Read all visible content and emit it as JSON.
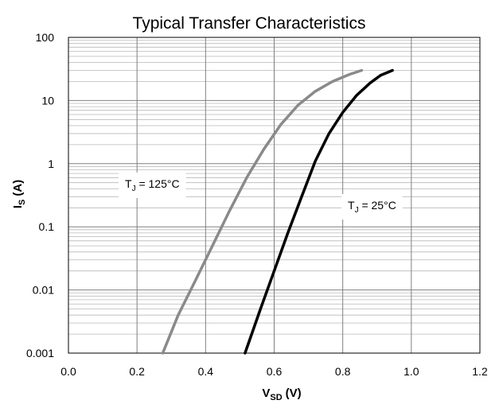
{
  "chart_data": {
    "type": "line",
    "title": "Typical Transfer Characteristics",
    "xlabel": {
      "main": "V",
      "sub": "SD",
      "unit": "(V)"
    },
    "ylabel": {
      "main": "I",
      "sub": "S",
      "unit": "(A)"
    },
    "xlim": [
      0,
      1.2
    ],
    "ylim": [
      0.001,
      100
    ],
    "yscale": "log",
    "grid": true,
    "x_ticks": [
      "0.0",
      "0.2",
      "0.4",
      "0.6",
      "0.8",
      "1.0",
      "1.2"
    ],
    "y_ticks": [
      "0.001",
      "0.01",
      "0.1",
      "1",
      "10",
      "100"
    ],
    "series": [
      {
        "name": "T_J = 125°C",
        "color": "#8a8a8a",
        "x": [
          0.275,
          0.32,
          0.37,
          0.42,
          0.47,
          0.52,
          0.57,
          0.62,
          0.67,
          0.72,
          0.77,
          0.82,
          0.855
        ],
        "y": [
          0.001,
          0.004,
          0.014,
          0.05,
          0.18,
          0.6,
          1.7,
          4.2,
          8.5,
          14,
          20,
          26,
          30
        ]
      },
      {
        "name": "T_J = 25°C",
        "color": "#000000",
        "x": [
          0.515,
          0.56,
          0.6,
          0.64,
          0.68,
          0.72,
          0.76,
          0.8,
          0.84,
          0.88,
          0.91,
          0.945
        ],
        "y": [
          0.001,
          0.005,
          0.02,
          0.08,
          0.3,
          1.1,
          3.0,
          6.5,
          12,
          19,
          25,
          30
        ]
      }
    ],
    "annotations": [
      {
        "main": "T",
        "sub": "J",
        "rest": " = 125°C"
      },
      {
        "main": "T",
        "sub": "J",
        "rest": " = 25°C"
      }
    ]
  }
}
